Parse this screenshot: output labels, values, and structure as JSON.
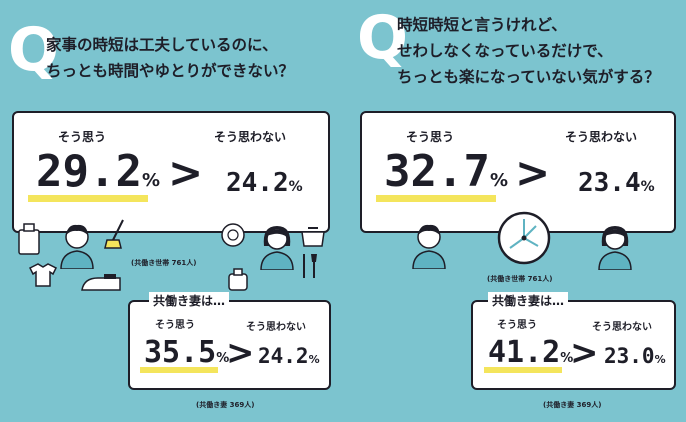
{
  "left": {
    "q_mark": "Q",
    "question_line1": "家事の時短は工夫しているのに、",
    "question_line2": "ちっとも時間やゆとりができない？",
    "households": {
      "yes_label": "そう思う",
      "yes_value": "29.2",
      "no_label": "そう思わない",
      "no_value": "24.2",
      "unit": "%",
      "gt": ">",
      "note": "(共働き世帯 761人)"
    },
    "dual_wives": {
      "heading": "共働き妻は…",
      "yes_label": "そう思う",
      "yes_value": "35.5",
      "no_label": "そう思わない",
      "no_value": "24.2",
      "unit": "%",
      "gt": ">",
      "note": "(共働き妻 369人)"
    }
  },
  "right": {
    "q_mark": "Q",
    "question_line1": "時短時短と言うけれど、",
    "question_line2": "せわしなくなっているだけで、",
    "question_line3": "ちっとも楽になっていない気がする？",
    "households": {
      "yes_label": "そう思う",
      "yes_value": "32.7",
      "no_label": "そう思わない",
      "no_value": "23.4",
      "unit": "%",
      "gt": ">",
      "note": "(共働き世帯 761人)"
    },
    "dual_wives": {
      "heading": "共働き妻は…",
      "yes_label": "そう思う",
      "yes_value": "41.2",
      "no_label": "そう思わない",
      "no_value": "23.0",
      "unit": "%",
      "gt": ">",
      "note": "(共働き妻 369人)"
    }
  },
  "colors": {
    "background": "#7cc4cf",
    "highlight": "#f4e55c",
    "ink": "#1e1e28",
    "shirt": "#5fb3c2"
  },
  "icons": [
    "man-icon",
    "woman-icon",
    "clock-icon",
    "dishes-icon",
    "kettle-icon",
    "broom-icon",
    "shirt-icon",
    "iron-icon",
    "pot-icon",
    "cutlery-icon",
    "bottle-icon"
  ]
}
